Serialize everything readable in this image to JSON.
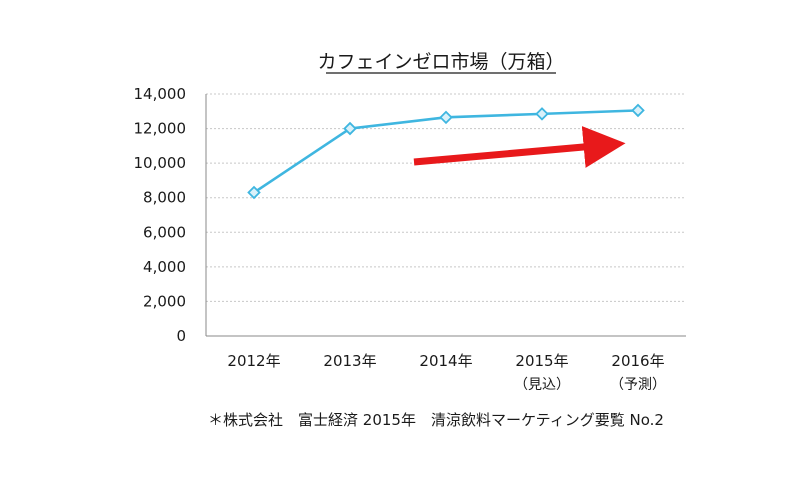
{
  "chart_data": {
    "type": "line",
    "title": "カフェインゼロ市場（万箱）",
    "categories": [
      "2012年",
      "2013年",
      "2014年",
      "2015年",
      "2016年"
    ],
    "category_sublabels": [
      "",
      "",
      "",
      "（見込）",
      "（予測）"
    ],
    "series": [
      {
        "values": [
          8300,
          12000,
          12650,
          12850,
          13050
        ]
      }
    ],
    "yticks": [
      "0",
      "2,000",
      "4,000",
      "6,000",
      "8,000",
      "10,000",
      "12,000",
      "14,000"
    ],
    "ylim": [
      0,
      14000
    ],
    "grid": true,
    "line_color": "#3fb6e0",
    "marker_fill": "#d9f1fa",
    "arrow_color": "#e8191b",
    "annotation": "upward trend arrow"
  },
  "source_note": "＊株式会社　富士経済 2015年　清涼飲料マーケティング要覧 No.2"
}
